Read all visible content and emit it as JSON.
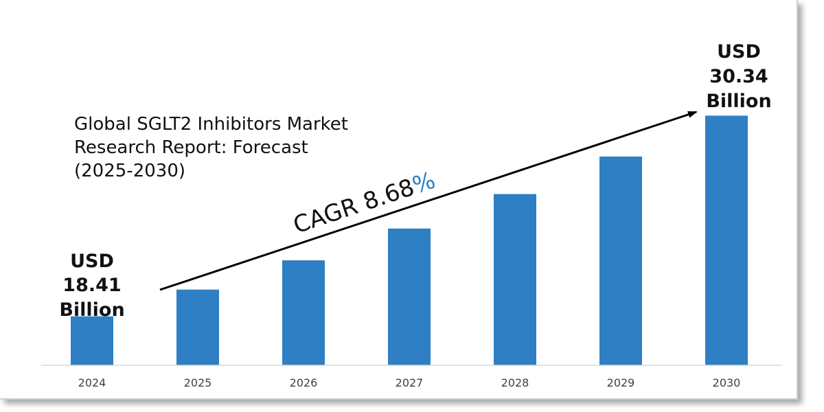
{
  "chart_data": {
    "type": "bar",
    "title": "Global SGLT2 Inhibitors Market Research Report: Forecast (2025-2030)",
    "title_lines": [
      "Global SGLT2 Inhibitors Market",
      "Research Report: Forecast",
      "(2025-2030)"
    ],
    "categories": [
      "2024",
      "2025",
      "2026",
      "2027",
      "2028",
      "2029",
      "2030"
    ],
    "values": [
      18.41,
      20.0,
      21.74,
      23.63,
      25.68,
      27.91,
      30.34
    ],
    "ylim": [
      15.5,
      31.5
    ],
    "grid": false,
    "bar_color": "#2e7fc4",
    "start_label": {
      "lines": [
        "USD",
        "18.41",
        "Billion"
      ]
    },
    "end_label": {
      "lines": [
        "USD",
        "30.34",
        "Billion"
      ]
    },
    "cagr": {
      "prefix": "CAGR ",
      "number": "8.68",
      "percent": "%",
      "percent_color": "#2e7fc4"
    }
  }
}
